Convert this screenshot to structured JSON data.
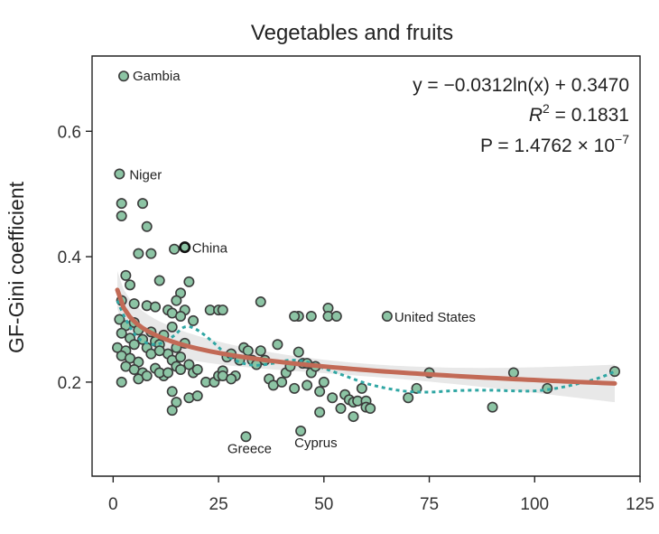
{
  "chart_data": {
    "type": "scatter",
    "title": "Vegetables and fruits",
    "xlabel": "",
    "ylabel": "GF-Gini coefficient",
    "xlim": [
      -5,
      125
    ],
    "ylim": [
      0.05,
      0.72
    ],
    "x_ticks": [
      0,
      25,
      50,
      75,
      100,
      125
    ],
    "y_ticks": [
      0.2,
      0.4,
      0.6
    ],
    "y_tick_labels": [
      "0.2",
      "0.4",
      "0.6"
    ],
    "equation": {
      "line1": "y = −0.0312ln(x) + 0.3470",
      "r2_prefix": "R",
      "r2_sup": "2",
      "r2_value": " = 0.1831",
      "p_prefix": "P = 1.4762 × 10",
      "p_sup": "−7"
    },
    "fit": {
      "a": -0.0312,
      "b": 0.347,
      "x_range": [
        1,
        119
      ],
      "band_halfwidth_min": 0.01,
      "band_halfwidth_max": 0.03
    },
    "annotations": [
      {
        "label": "Gambia",
        "x": 2.5,
        "y": 0.688
      },
      {
        "label": "Niger",
        "x": 1.5,
        "y": 0.532
      },
      {
        "label": "China",
        "x": 17,
        "y": 0.415
      },
      {
        "label": "United States",
        "x": 65,
        "y": 0.305
      },
      {
        "label": "Greece",
        "x": 31.5,
        "y": 0.113
      },
      {
        "label": "Cyprus",
        "x": 44.5,
        "y": 0.122
      }
    ],
    "smooth": {
      "x": [
        1,
        3,
        6,
        10,
        14,
        17,
        20,
        24,
        28,
        33,
        38,
        42,
        46,
        50,
        55,
        60,
        65,
        70,
        75,
        80,
        85,
        90,
        95,
        100,
        105,
        110,
        115,
        119
      ],
      "y": [
        0.33,
        0.3,
        0.27,
        0.26,
        0.272,
        0.288,
        0.283,
        0.262,
        0.238,
        0.227,
        0.23,
        0.235,
        0.232,
        0.222,
        0.21,
        0.198,
        0.19,
        0.185,
        0.184,
        0.186,
        0.187,
        0.187,
        0.186,
        0.186,
        0.19,
        0.197,
        0.206,
        0.217
      ]
    },
    "points": [
      [
        2.5,
        0.688
      ],
      [
        1.5,
        0.532
      ],
      [
        2,
        0.485
      ],
      [
        2,
        0.465
      ],
      [
        7,
        0.485
      ],
      [
        8,
        0.448
      ],
      [
        6,
        0.405
      ],
      [
        9,
        0.405
      ],
      [
        14.5,
        0.412
      ],
      [
        17,
        0.415
      ],
      [
        3,
        0.37
      ],
      [
        4,
        0.355
      ],
      [
        11,
        0.362
      ],
      [
        18,
        0.36
      ],
      [
        16,
        0.342
      ],
      [
        2,
        0.33
      ],
      [
        5,
        0.325
      ],
      [
        8,
        0.322
      ],
      [
        15,
        0.33
      ],
      [
        10,
        0.32
      ],
      [
        13,
        0.315
      ],
      [
        14,
        0.31
      ],
      [
        17,
        0.315
      ],
      [
        19,
        0.298
      ],
      [
        16,
        0.305
      ],
      [
        23,
        0.315
      ],
      [
        25,
        0.315
      ],
      [
        26,
        0.315
      ],
      [
        35,
        0.328
      ],
      [
        44,
        0.305
      ],
      [
        43,
        0.305
      ],
      [
        47,
        0.305
      ],
      [
        51,
        0.318
      ],
      [
        51,
        0.305
      ],
      [
        53,
        0.305
      ],
      [
        65,
        0.305
      ],
      [
        1.5,
        0.3
      ],
      [
        3,
        0.29
      ],
      [
        5,
        0.295
      ],
      [
        6,
        0.283
      ],
      [
        2,
        0.278
      ],
      [
        4,
        0.27
      ],
      [
        7,
        0.268
      ],
      [
        9,
        0.28
      ],
      [
        12,
        0.275
      ],
      [
        14,
        0.288
      ],
      [
        10,
        0.265
      ],
      [
        1,
        0.255
      ],
      [
        3,
        0.25
      ],
      [
        5,
        0.26
      ],
      [
        8,
        0.255
      ],
      [
        11,
        0.26
      ],
      [
        13,
        0.245
      ],
      [
        15,
        0.255
      ],
      [
        17,
        0.262
      ],
      [
        2,
        0.242
      ],
      [
        4,
        0.238
      ],
      [
        6,
        0.232
      ],
      [
        9,
        0.245
      ],
      [
        11,
        0.25
      ],
      [
        14,
        0.235
      ],
      [
        16,
        0.24
      ],
      [
        3,
        0.225
      ],
      [
        5,
        0.22
      ],
      [
        7,
        0.215
      ],
      [
        10,
        0.222
      ],
      [
        12,
        0.21
      ],
      [
        15,
        0.225
      ],
      [
        2,
        0.2
      ],
      [
        6,
        0.205
      ],
      [
        8,
        0.21
      ],
      [
        11,
        0.215
      ],
      [
        13,
        0.215
      ],
      [
        16,
        0.22
      ],
      [
        18,
        0.228
      ],
      [
        19,
        0.215
      ],
      [
        20,
        0.22
      ],
      [
        22,
        0.2
      ],
      [
        24,
        0.2
      ],
      [
        25,
        0.21
      ],
      [
        26,
        0.218
      ],
      [
        27,
        0.24
      ],
      [
        28,
        0.245
      ],
      [
        30,
        0.235
      ],
      [
        29,
        0.21
      ],
      [
        31,
        0.255
      ],
      [
        32,
        0.25
      ],
      [
        33,
        0.235
      ],
      [
        34,
        0.228
      ],
      [
        35,
        0.25
      ],
      [
        37,
        0.205
      ],
      [
        38,
        0.195
      ],
      [
        39,
        0.26
      ],
      [
        40,
        0.2
      ],
      [
        41,
        0.215
      ],
      [
        42,
        0.225
      ],
      [
        44,
        0.248
      ],
      [
        45,
        0.23
      ],
      [
        46,
        0.23
      ],
      [
        47,
        0.215
      ],
      [
        48,
        0.225
      ],
      [
        49,
        0.185
      ],
      [
        50,
        0.2
      ],
      [
        52,
        0.175
      ],
      [
        55,
        0.18
      ],
      [
        56,
        0.172
      ],
      [
        57,
        0.168
      ],
      [
        58,
        0.17
      ],
      [
        59,
        0.19
      ],
      [
        60,
        0.17
      ],
      [
        60,
        0.16
      ],
      [
        61,
        0.158
      ],
      [
        54,
        0.158
      ],
      [
        49,
        0.152
      ],
      [
        57,
        0.145
      ],
      [
        18,
        0.175
      ],
      [
        20,
        0.178
      ],
      [
        14,
        0.185
      ],
      [
        15,
        0.168
      ],
      [
        14,
        0.155
      ],
      [
        26,
        0.21
      ],
      [
        31.5,
        0.113
      ],
      [
        44.5,
        0.122
      ],
      [
        70,
        0.175
      ],
      [
        72,
        0.19
      ],
      [
        75,
        0.215
      ],
      [
        90,
        0.16
      ],
      [
        95,
        0.215
      ],
      [
        103,
        0.19
      ],
      [
        119,
        0.217
      ],
      [
        28,
        0.205
      ],
      [
        36,
        0.235
      ],
      [
        43,
        0.19
      ],
      [
        46,
        0.195
      ]
    ],
    "highlight": [
      [
        17,
        0.415
      ]
    ]
  }
}
